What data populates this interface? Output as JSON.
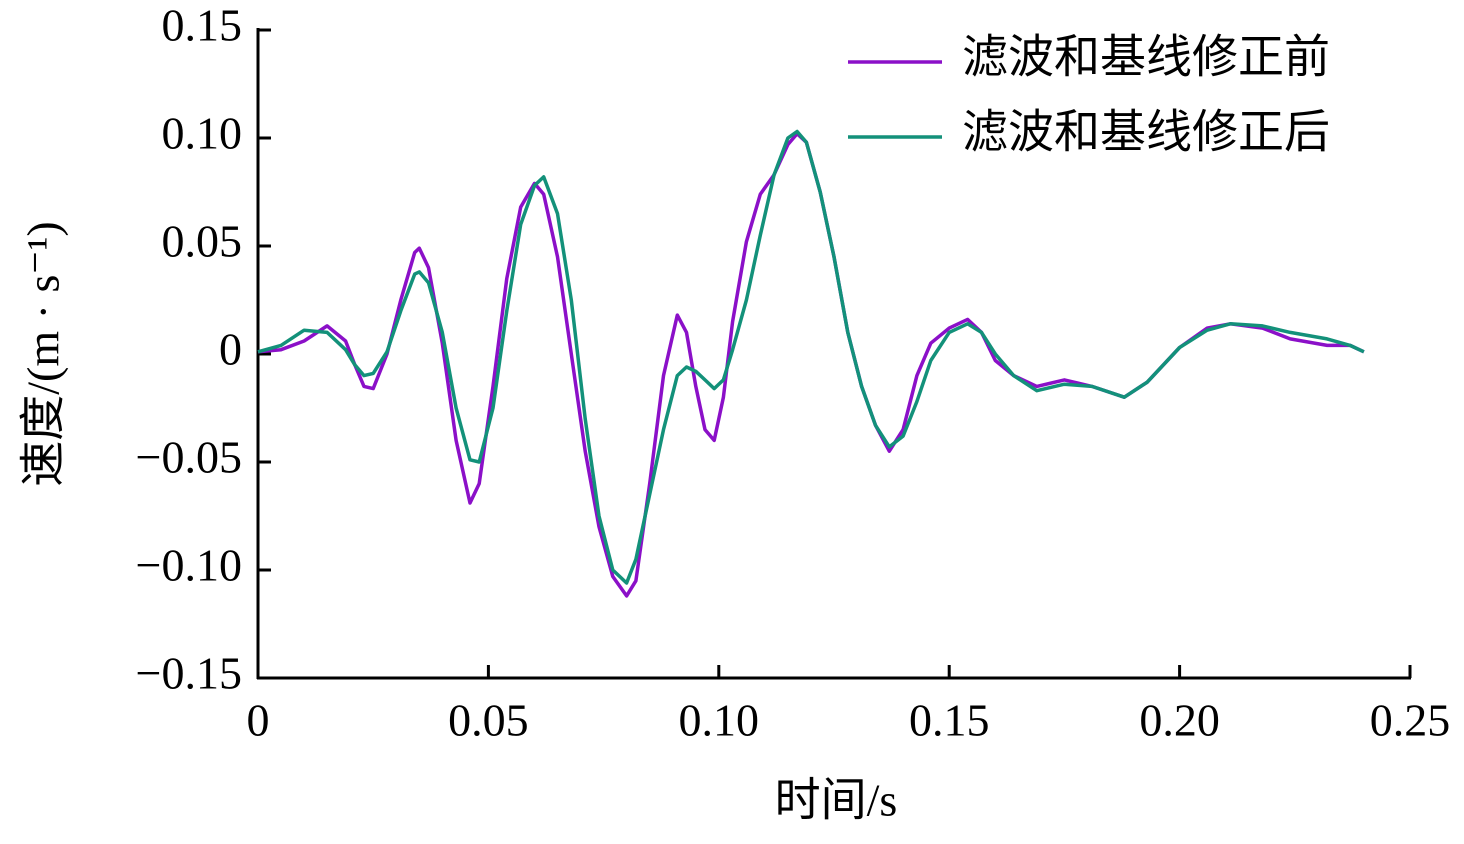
{
  "chart_data": {
    "type": "line",
    "xlabel": "时间/s",
    "ylabel": "速度/(m · s⁻¹)",
    "x": [
      0,
      0.005,
      0.01,
      0.015,
      0.019,
      0.021,
      0.023,
      0.025,
      0.028,
      0.031,
      0.034,
      0.035,
      0.037,
      0.04,
      0.043,
      0.046,
      0.048,
      0.051,
      0.054,
      0.057,
      0.06,
      0.062,
      0.065,
      0.068,
      0.071,
      0.074,
      0.077,
      0.08,
      0.082,
      0.085,
      0.088,
      0.091,
      0.093,
      0.095,
      0.097,
      0.099,
      0.101,
      0.103,
      0.106,
      0.109,
      0.112,
      0.115,
      0.117,
      0.119,
      0.122,
      0.125,
      0.128,
      0.131,
      0.134,
      0.137,
      0.14,
      0.143,
      0.146,
      0.15,
      0.154,
      0.157,
      0.16,
      0.164,
      0.169,
      0.175,
      0.181,
      0.188,
      0.193,
      0.2,
      0.206,
      0.211,
      0.218,
      0.224,
      0.232,
      0.237,
      0.24
    ],
    "series": [
      {
        "name": "滤波和基线修正前",
        "color": "#8b10c8",
        "values": [
          0.001,
          0.002,
          0.006,
          0.013,
          0.006,
          -0.005,
          -0.015,
          -0.016,
          0.0,
          0.025,
          0.047,
          0.049,
          0.04,
          0.005,
          -0.04,
          -0.069,
          -0.06,
          -0.015,
          0.035,
          0.068,
          0.079,
          0.074,
          0.045,
          0.0,
          -0.045,
          -0.08,
          -0.103,
          -0.112,
          -0.105,
          -0.06,
          -0.01,
          0.018,
          0.01,
          -0.015,
          -0.035,
          -0.04,
          -0.02,
          0.015,
          0.052,
          0.074,
          0.083,
          0.097,
          0.102,
          0.098,
          0.075,
          0.045,
          0.01,
          -0.015,
          -0.033,
          -0.045,
          -0.035,
          -0.01,
          0.005,
          0.012,
          0.016,
          0.01,
          -0.003,
          -0.01,
          -0.015,
          -0.012,
          -0.015,
          -0.02,
          -0.013,
          0.003,
          0.012,
          0.014,
          0.012,
          0.007,
          0.004,
          0.004,
          0.001
        ]
      },
      {
        "name": "滤波和基线修正后",
        "color": "#13917a",
        "values": [
          0.001,
          0.004,
          0.011,
          0.01,
          0.002,
          -0.005,
          -0.01,
          -0.009,
          0.001,
          0.02,
          0.037,
          0.038,
          0.033,
          0.01,
          -0.025,
          -0.049,
          -0.05,
          -0.025,
          0.02,
          0.06,
          0.078,
          0.082,
          0.065,
          0.025,
          -0.03,
          -0.075,
          -0.1,
          -0.106,
          -0.095,
          -0.065,
          -0.035,
          -0.01,
          -0.006,
          -0.008,
          -0.012,
          -0.016,
          -0.012,
          0.002,
          0.025,
          0.055,
          0.083,
          0.1,
          0.103,
          0.098,
          0.075,
          0.045,
          0.01,
          -0.015,
          -0.033,
          -0.043,
          -0.038,
          -0.022,
          -0.003,
          0.01,
          0.014,
          0.01,
          0.0,
          -0.01,
          -0.017,
          -0.014,
          -0.015,
          -0.02,
          -0.013,
          0.003,
          0.011,
          0.014,
          0.013,
          0.01,
          0.007,
          0.004,
          0.001
        ]
      }
    ],
    "xlim": [
      0,
      0.25
    ],
    "xticks": [
      0,
      0.05,
      {
        "value": 0.1,
        "label": "0.10"
      },
      0.15,
      {
        "value": 0.2,
        "label": "0.20"
      },
      0.25
    ],
    "ylim": [
      -0.15,
      0.15
    ],
    "yticks": [
      {
        "value": -0.15,
        "label": "−0.15"
      },
      {
        "value": -0.1,
        "label": "−0.10"
      },
      {
        "value": -0.05,
        "label": "−0.05"
      },
      0,
      0.05,
      {
        "value": 0.1,
        "label": "0.10"
      },
      0.15
    ],
    "legend": "upper right",
    "grid": false
  }
}
